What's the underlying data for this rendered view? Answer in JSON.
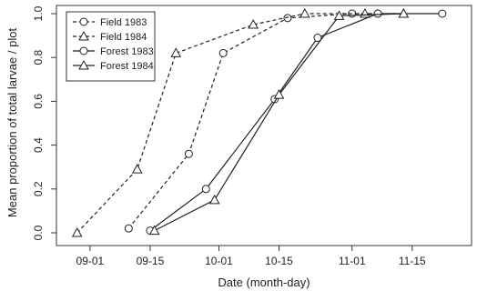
{
  "chart_data": {
    "type": "line",
    "xlabel": "Date (month-day)",
    "ylabel": "Mean proportion of total larvae / plot",
    "x_ticks": [
      "09-01",
      "09-15",
      "10-01",
      "10-15",
      "11-01",
      "11-15"
    ],
    "y_ticks": [
      "0.0",
      "0.2",
      "0.4",
      "0.6",
      "0.8",
      "1.0"
    ],
    "xlim": [
      "08-28",
      "11-25"
    ],
    "ylim": [
      0,
      1
    ],
    "grid": false,
    "legend_position": "top-left",
    "series": [
      {
        "name": "Field 1983",
        "marker": "circle",
        "line": "dashed",
        "x": [
          "09-10",
          "09-24",
          "10-02",
          "10-17",
          "11-01",
          "11-07"
        ],
        "y": [
          0.02,
          0.36,
          0.82,
          0.98,
          1.0,
          1.0
        ]
      },
      {
        "name": "Field 1984",
        "marker": "triangle",
        "line": "dashed",
        "x": [
          "08-29",
          "09-12",
          "09-21",
          "10-09",
          "10-21",
          "11-04",
          "11-13"
        ],
        "y": [
          0.0,
          0.29,
          0.82,
          0.95,
          1.0,
          1.0,
          1.0
        ]
      },
      {
        "name": "Forest 1983",
        "marker": "circle",
        "line": "solid",
        "x": [
          "09-15",
          "09-28",
          "10-14",
          "10-24",
          "11-07",
          "11-22"
        ],
        "y": [
          0.01,
          0.2,
          0.61,
          0.89,
          1.0,
          1.0
        ]
      },
      {
        "name": "Forest 1984",
        "marker": "triangle",
        "line": "solid",
        "x": [
          "09-16",
          "09-30",
          "10-15",
          "10-29",
          "11-13"
        ],
        "y": [
          0.01,
          0.15,
          0.63,
          0.99,
          1.0
        ]
      }
    ]
  }
}
